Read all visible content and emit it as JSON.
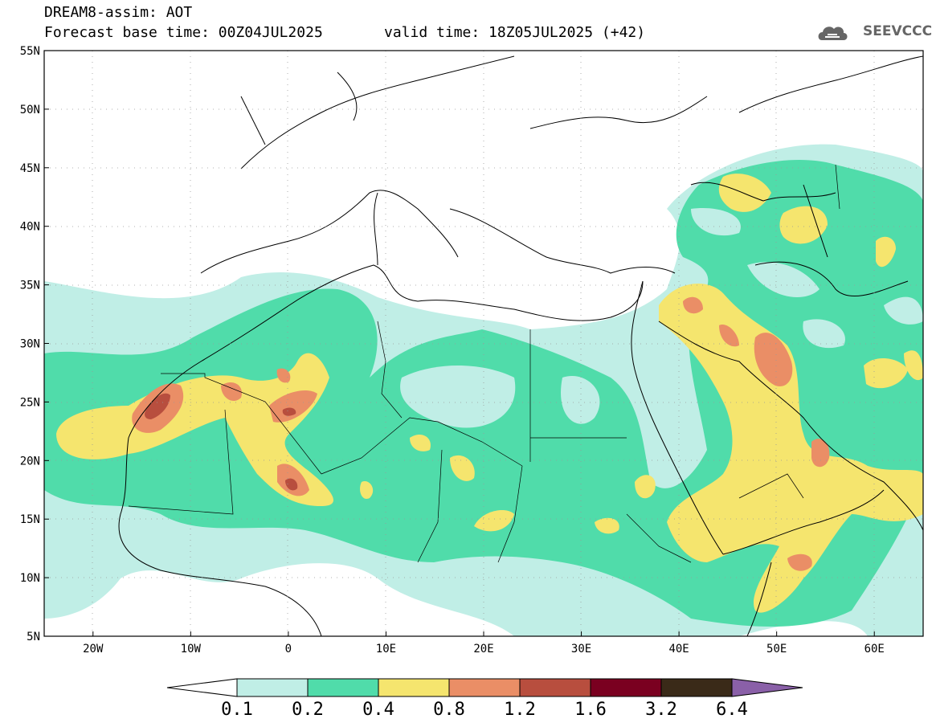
{
  "header": {
    "title": "DREAM8-assim: AOT",
    "base_time": "Forecast base time: 00Z04JUL2025",
    "valid_time": "valid time: 18Z05JUL2025 (+42)",
    "logo_text": "SEEVCCC"
  },
  "map": {
    "lon_range": [
      -25,
      65
    ],
    "lat_range": [
      5,
      55
    ],
    "lat_labels": [
      "55N",
      "50N",
      "45N",
      "40N",
      "35N",
      "30N",
      "25N",
      "20N",
      "15N",
      "10N",
      "5N"
    ],
    "lon_labels": [
      "20W",
      "10W",
      "0",
      "10E",
      "20E",
      "30E",
      "40E",
      "50E",
      "60E"
    ]
  },
  "colorbar": {
    "colors": [
      "#ffffff",
      "#c0eee6",
      "#50dcaa",
      "#f5e56e",
      "#ea8e66",
      "#b84e3e",
      "#7a0020",
      "#3a2a18",
      "#8a60a8"
    ],
    "levels": [
      "0.1",
      "0.2",
      "0.4",
      "0.8",
      "1.2",
      "1.6",
      "3.2",
      "6.4"
    ]
  }
}
